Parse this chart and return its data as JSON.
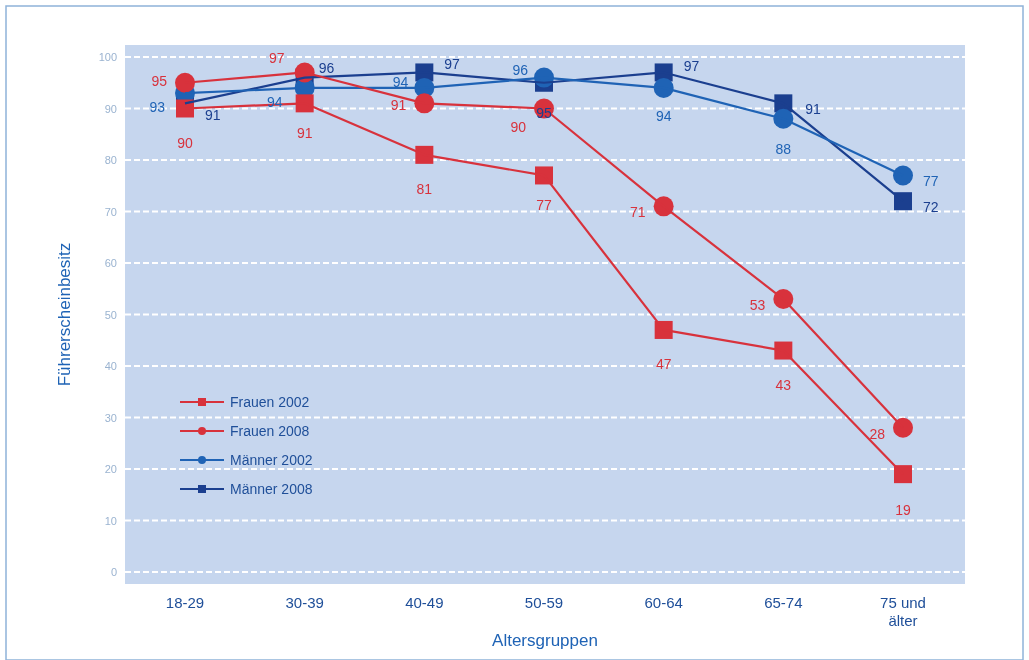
{
  "chart_data": {
    "type": "line",
    "xlabel": "Altersgruppen",
    "ylabel": "Führerscheinbesitz",
    "categories": [
      "18-29",
      "30-39",
      "40-49",
      "50-59",
      "60-64",
      "65-74",
      "75 und älter"
    ],
    "series": [
      {
        "name": "Frauen 2002",
        "color": "#d8323c",
        "marker": "square",
        "values": [
          90,
          91,
          81,
          77,
          47,
          43,
          19
        ]
      },
      {
        "name": "Frauen 2008",
        "color": "#d8323c",
        "marker": "circle",
        "values": [
          95,
          97,
          91,
          90,
          71,
          53,
          28
        ]
      },
      {
        "name": "Männer 2002",
        "color": "#1f63b5",
        "marker": "circle",
        "values": [
          93,
          94,
          94,
          96,
          94,
          88,
          77
        ]
      },
      {
        "name": "Männer 2008",
        "color": "#1b3f8f",
        "marker": "square",
        "values": [
          91,
          96,
          97,
          95,
          97,
          91,
          72
        ]
      }
    ],
    "ylim": [
      0,
      100
    ],
    "yticks": [
      0,
      10,
      20,
      30,
      40,
      50,
      60,
      70,
      80,
      90,
      100
    ],
    "grid": "y",
    "legend": "bottom left",
    "data_labels": true
  }
}
